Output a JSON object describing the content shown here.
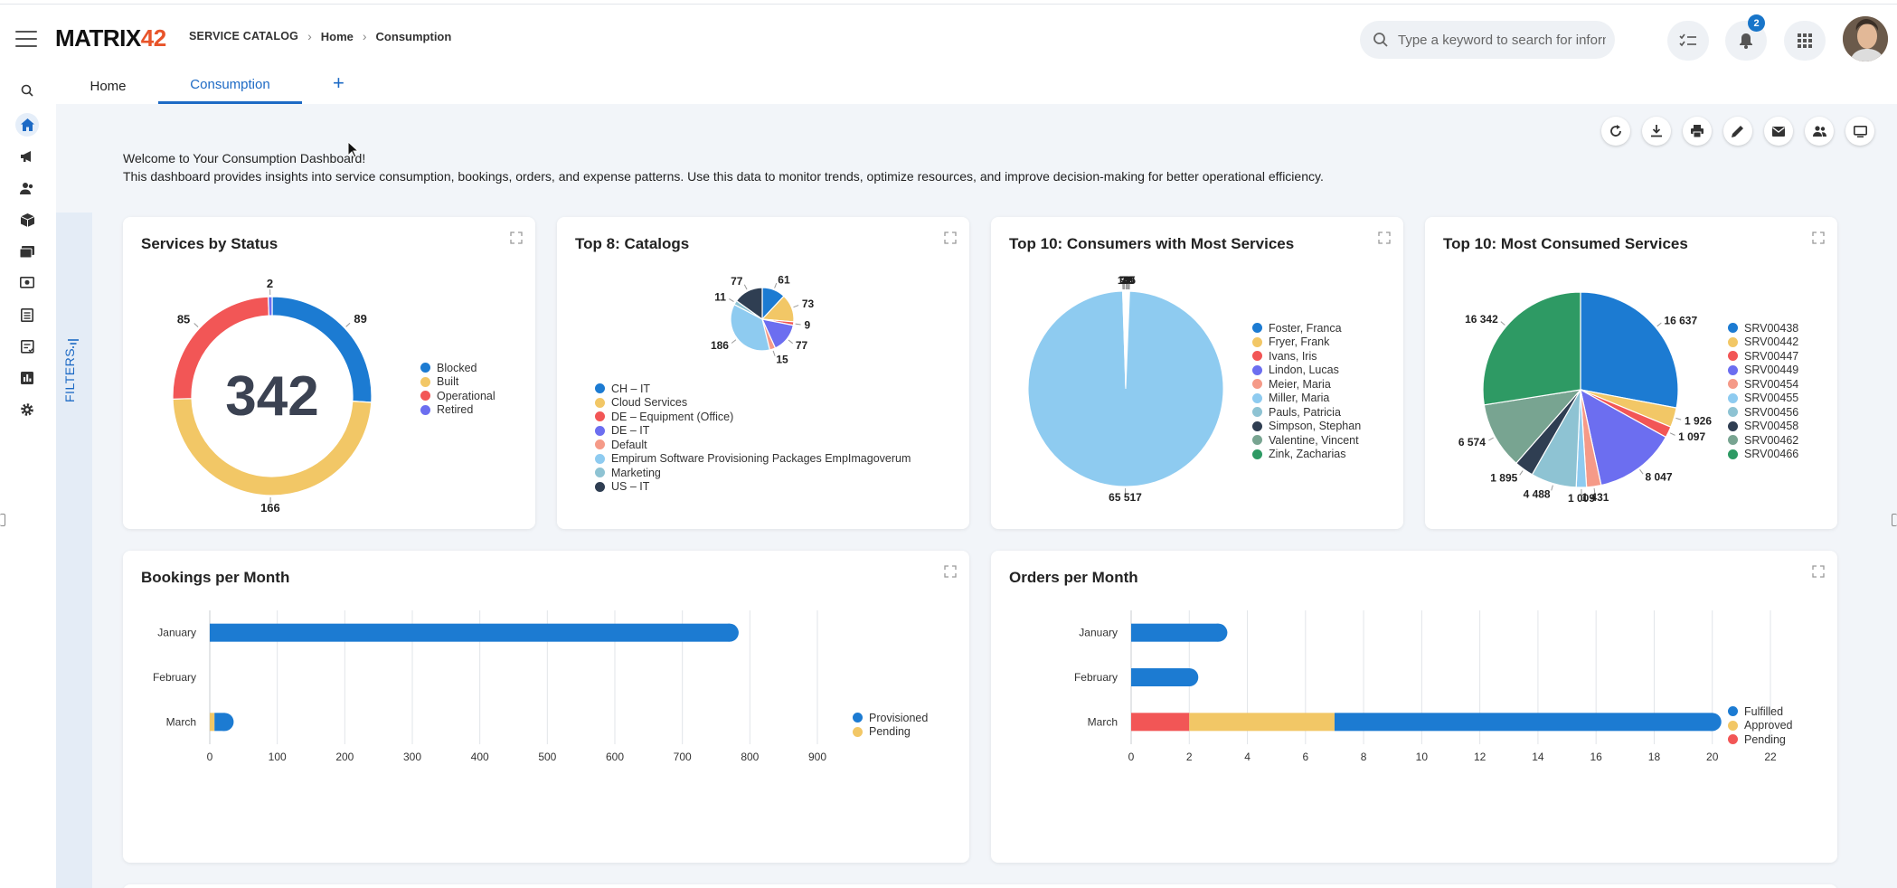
{
  "app": {
    "logo_main": "MATRIX",
    "logo_num": "42"
  },
  "breadcrumb": {
    "root": "SERVICE CATALOG",
    "home": "Home",
    "current": "Consumption"
  },
  "search": {
    "placeholder": "Type a keyword to search for information"
  },
  "notifications": {
    "count": "2"
  },
  "tabs": {
    "home": "Home",
    "consumption": "Consumption",
    "add": "+"
  },
  "filters": {
    "label": "FILTERS"
  },
  "welcome": {
    "line1": "Welcome to Your Consumption Dashboard!",
    "line2": "This dashboard provides insights into service consumption, bookings, orders, and expense patterns. Use this data to monitor trends, optimize resources, and improve decision-making for better operational efficiency."
  },
  "colors": {
    "accent": "#1d6ac5",
    "blue": "#1c7bd2",
    "yellow": "#f2c766",
    "red": "#f25656",
    "purple": "#6c6ef0",
    "salmon": "#f59a88",
    "lightblue": "#8ecbf0",
    "teal": "#8ec3d3",
    "navy": "#2f3e52",
    "sage": "#78a491",
    "green": "#2e9a64"
  },
  "chart_data": [
    {
      "type": "pie",
      "title": "Services by Status",
      "center_value": "342",
      "categories": [
        "Blocked",
        "Built",
        "Operational",
        "Retired"
      ],
      "values": [
        89,
        166,
        85,
        2
      ],
      "labels": [
        "89",
        "166",
        "85",
        "2"
      ]
    },
    {
      "type": "pie",
      "title": "Top 8: Catalogs",
      "categories": [
        "CH – IT",
        "Cloud Services",
        "DE – Equipment (Office)",
        "DE – IT",
        "Default",
        "Empirum Software Provisioning Packages EmpImagoverum",
        "Marketing",
        "US – IT"
      ],
      "values": [
        61,
        73,
        9,
        77,
        15,
        186,
        11,
        77
      ],
      "labels": [
        "61",
        "73",
        "9",
        "77",
        "15",
        "186",
        "11",
        "77"
      ]
    },
    {
      "type": "pie",
      "title": "Top 10: Consumers with Most Services",
      "categories": [
        "Foster, Franca",
        "Fryer, Frank",
        "Ivans, Iris",
        "Lindon, Lucas",
        "Meier, Maria",
        "Miller, Maria",
        "Pauls, Patricia",
        "Simpson, Stephan",
        "Valentine, Vincent",
        "Zink, Zacharias"
      ],
      "values": [
        6,
        28,
        9,
        49,
        65,
        65517,
        9,
        13,
        7,
        0
      ],
      "labels": [
        "6",
        "28",
        "9",
        "49",
        "65",
        "65 517",
        "9",
        "13",
        "7",
        ""
      ]
    },
    {
      "type": "pie",
      "title": "Top 10: Most Consumed Services",
      "categories": [
        "SRV00438",
        "SRV00442",
        "SRV00447",
        "SRV00449",
        "SRV00454",
        "SRV00455",
        "SRV00456",
        "SRV00458",
        "SRV00462",
        "SRV00466"
      ],
      "values": [
        16637,
        1926,
        1097,
        8047,
        1431,
        1009,
        4488,
        1895,
        6574,
        16342
      ],
      "labels": [
        "16 637",
        "1 926",
        "1 097",
        "8 047",
        "1 431",
        "1 009",
        "4 488",
        "1 895",
        "6 574",
        "16 342"
      ]
    },
    {
      "type": "bar",
      "orientation": "horizontal",
      "stacked": true,
      "title": "Bookings per Month",
      "categories": [
        "January",
        "February",
        "March"
      ],
      "series": [
        {
          "name": "Provisioned",
          "values": [
            770,
            0,
            15
          ]
        },
        {
          "name": "Pending",
          "values": [
            0,
            0,
            7
          ]
        }
      ],
      "xlim": [
        0,
        900
      ],
      "ticks": [
        "0",
        "100",
        "200",
        "300",
        "400",
        "500",
        "600",
        "700",
        "800",
        "900"
      ]
    },
    {
      "type": "bar",
      "orientation": "horizontal",
      "stacked": true,
      "title": "Orders per Month",
      "categories": [
        "January",
        "February",
        "March"
      ],
      "series": [
        {
          "name": "Fulfilled",
          "values": [
            3,
            2,
            13
          ]
        },
        {
          "name": "Approved",
          "values": [
            0,
            0,
            5
          ]
        },
        {
          "name": "Pending",
          "values": [
            0,
            0,
            2
          ]
        }
      ],
      "xlim": [
        0,
        22
      ],
      "ticks": [
        "0",
        "2",
        "4",
        "6",
        "8",
        "10",
        "12",
        "14",
        "16",
        "18",
        "20",
        "22"
      ]
    }
  ]
}
